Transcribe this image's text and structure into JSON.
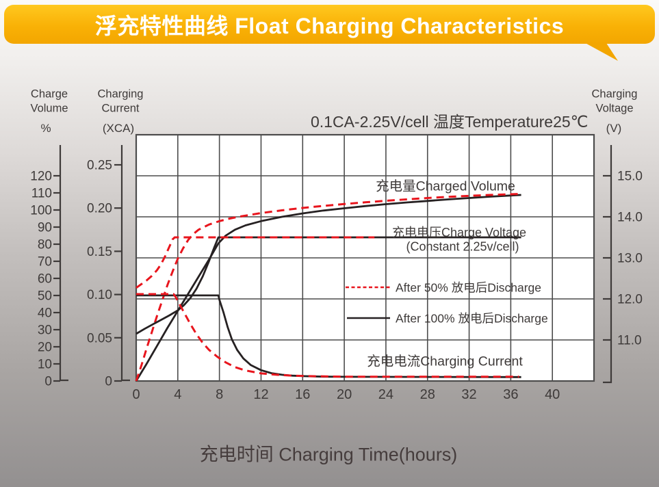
{
  "banner": {
    "title": "浮充特性曲线 Float Charging Characteristics"
  },
  "colors": {
    "banner_top": "#ffc81f",
    "banner_bottom": "#f3a600",
    "red": "#e8151d",
    "black": "#262122",
    "grid": "#4c4c4c",
    "text": "#3e3a39",
    "plot_bg": "#ffffff"
  },
  "headers": {
    "left_percent_title": "Charge\nVolume",
    "left_percent_unit": "%",
    "left_current_title": "Charging\nCurrent",
    "left_current_unit": "(XCA)",
    "right_voltage_title": "Charging\nVoltage",
    "right_voltage_unit": "(V)",
    "condition": "0.1CA-2.25V/cell  温度Temperature25℃"
  },
  "annotations": {
    "charged_volume": "充电量Charged Volume",
    "charge_voltage_line1": "充电电压Charge Voltage",
    "charge_voltage_line2": "(Constant 2.25v/cell)",
    "charging_current": "充电电流Charging Current"
  },
  "legend": [
    {
      "label": "After 50% 放电后Discharge",
      "style": "dashed",
      "color": "#e8151d"
    },
    {
      "label": "After 100% 放电后Discharge",
      "style": "solid",
      "color": "#262122"
    }
  ],
  "caption": "充电时间 Charging Time(hours)",
  "chart_data": {
    "type": "line",
    "title": "浮充特性曲线 Float Charging Characteristics",
    "xlabel": "充电时间 Charging Time(hours)",
    "condition": "0.1CA-2.25V/cell 温度Temperature25℃",
    "grid": true,
    "x_axis": {
      "range": [
        0,
        44
      ],
      "tick_values": [
        0,
        4,
        8,
        12,
        16,
        20,
        24,
        28,
        32,
        36,
        40
      ],
      "tick_labels": [
        "0",
        "4",
        "8",
        "12",
        "16",
        "20",
        "24",
        "28",
        "32",
        "36",
        "40"
      ]
    },
    "percent_axis": {
      "name": "Charge Volume %",
      "range": [
        0,
        120
      ],
      "tick_values": [
        0,
        10,
        20,
        30,
        40,
        50,
        60,
        70,
        80,
        90,
        100,
        110,
        120
      ],
      "tick_labels": [
        "0",
        "10",
        "20",
        "30",
        "40",
        "50",
        "60",
        "70",
        "80",
        "90",
        "100",
        "110",
        "120"
      ]
    },
    "xca_axis": {
      "name": "Charging Current (XCA)",
      "range": [
        0,
        0.25
      ],
      "tick_values": [
        0,
        0.05,
        0.1,
        0.15,
        0.2,
        0.25
      ],
      "tick_labels": [
        "0",
        "0.05",
        "0.10",
        "0.15",
        "0.20",
        "0.25"
      ]
    },
    "volt_axis": {
      "name": "Charging Voltage (V)",
      "range": [
        10,
        16
      ],
      "tick_values": [
        11,
        12,
        13,
        14,
        15
      ],
      "tick_labels": [
        "11.0",
        "12.0",
        "13.0",
        "14.0",
        "15.0"
      ]
    },
    "series": [
      {
        "name": "charged-volume-after-100-discharge",
        "axis": "percent",
        "color": "black",
        "style": "solid",
        "points": [
          [
            0,
            0
          ],
          [
            1,
            10
          ],
          [
            2,
            20.5
          ],
          [
            3,
            31
          ],
          [
            4,
            41
          ],
          [
            5,
            51
          ],
          [
            6,
            61
          ],
          [
            7,
            71
          ],
          [
            7.9,
            80.5
          ],
          [
            8.6,
            85
          ],
          [
            9.5,
            88.5
          ],
          [
            10.5,
            91
          ],
          [
            12,
            93.5
          ],
          [
            14,
            96
          ],
          [
            16,
            98
          ],
          [
            18,
            99.7
          ],
          [
            20,
            101
          ],
          [
            22,
            102.3
          ],
          [
            24,
            103.4
          ],
          [
            26,
            104.4
          ],
          [
            28,
            105.3
          ],
          [
            30,
            106.2
          ],
          [
            32,
            107
          ],
          [
            34,
            107.8
          ],
          [
            36,
            108.5
          ],
          [
            37,
            108.8
          ]
        ]
      },
      {
        "name": "charged-volume-after-50-discharge",
        "axis": "percent",
        "color": "red",
        "style": "dashed",
        "points": [
          [
            0,
            0
          ],
          [
            0.5,
            9
          ],
          [
            1,
            19
          ],
          [
            1.5,
            28.5
          ],
          [
            2,
            38
          ],
          [
            2.5,
            47
          ],
          [
            3,
            56
          ],
          [
            3.5,
            64
          ],
          [
            4,
            71.5
          ],
          [
            4.5,
            77.5
          ],
          [
            5,
            82.5
          ],
          [
            5.5,
            86
          ],
          [
            6,
            88.5
          ],
          [
            7,
            91.5
          ],
          [
            8,
            93.5
          ],
          [
            9,
            95
          ],
          [
            10,
            96.2
          ],
          [
            12,
            98.2
          ],
          [
            14,
            99.8
          ],
          [
            16,
            101.2
          ],
          [
            18,
            102.4
          ],
          [
            20,
            103.5
          ],
          [
            22,
            104.5
          ],
          [
            24,
            105.4
          ],
          [
            26,
            106.2
          ],
          [
            28,
            107
          ],
          [
            30,
            107.7
          ],
          [
            32,
            108.3
          ],
          [
            34,
            108.8
          ],
          [
            36,
            109.2
          ],
          [
            36.8,
            109.4
          ]
        ]
      },
      {
        "name": "charge-voltage-after-100-discharge",
        "axis": "volt",
        "color": "black",
        "style": "solid",
        "points": [
          [
            0,
            11.15
          ],
          [
            0.8,
            11.27
          ],
          [
            1.6,
            11.38
          ],
          [
            2.4,
            11.49
          ],
          [
            3.2,
            11.6
          ],
          [
            4,
            11.72
          ],
          [
            4.6,
            11.85
          ],
          [
            5.2,
            12.02
          ],
          [
            5.8,
            12.25
          ],
          [
            6.4,
            12.55
          ],
          [
            7,
            12.92
          ],
          [
            7.5,
            13.25
          ],
          [
            7.9,
            13.5
          ],
          [
            37,
            13.5
          ]
        ]
      },
      {
        "name": "charge-voltage-after-50-discharge",
        "axis": "volt",
        "color": "red",
        "style": "dashed",
        "points": [
          [
            0,
            12.27
          ],
          [
            0.5,
            12.36
          ],
          [
            1,
            12.45
          ],
          [
            1.5,
            12.56
          ],
          [
            2,
            12.7
          ],
          [
            2.4,
            12.85
          ],
          [
            2.8,
            13.05
          ],
          [
            3.2,
            13.28
          ],
          [
            3.5,
            13.45
          ],
          [
            3.7,
            13.5
          ],
          [
            22.9,
            13.5
          ]
        ]
      },
      {
        "name": "charging-current-after-100-discharge",
        "axis": "xca",
        "color": "black",
        "style": "solid",
        "points": [
          [
            0,
            0.099
          ],
          [
            7.9,
            0.099
          ],
          [
            8.0,
            0.094
          ],
          [
            8.4,
            0.079
          ],
          [
            8.8,
            0.062
          ],
          [
            9.2,
            0.048
          ],
          [
            9.7,
            0.036
          ],
          [
            10.3,
            0.026
          ],
          [
            11,
            0.0185
          ],
          [
            12,
            0.0125
          ],
          [
            13,
            0.009
          ],
          [
            14,
            0.0072
          ],
          [
            15,
            0.0062
          ],
          [
            16,
            0.0056
          ],
          [
            18,
            0.005
          ],
          [
            20,
            0.0048
          ],
          [
            37,
            0.0045
          ]
        ]
      },
      {
        "name": "charging-current-after-50-discharge",
        "axis": "xca",
        "color": "red",
        "style": "dashed",
        "points": [
          [
            0,
            0.1005
          ],
          [
            3.6,
            0.1005
          ],
          [
            3.8,
            0.097
          ],
          [
            4.2,
            0.088
          ],
          [
            4.7,
            0.077
          ],
          [
            5.2,
            0.066
          ],
          [
            5.8,
            0.054
          ],
          [
            6.4,
            0.044
          ],
          [
            7,
            0.036
          ],
          [
            7.8,
            0.028
          ],
          [
            8.6,
            0.0215
          ],
          [
            9.5,
            0.016
          ],
          [
            10.5,
            0.0122
          ],
          [
            12,
            0.0088
          ],
          [
            13.5,
            0.0072
          ],
          [
            15,
            0.0062
          ],
          [
            17,
            0.0055
          ],
          [
            20,
            0.005
          ],
          [
            36.8,
            0.005
          ]
        ]
      }
    ]
  }
}
